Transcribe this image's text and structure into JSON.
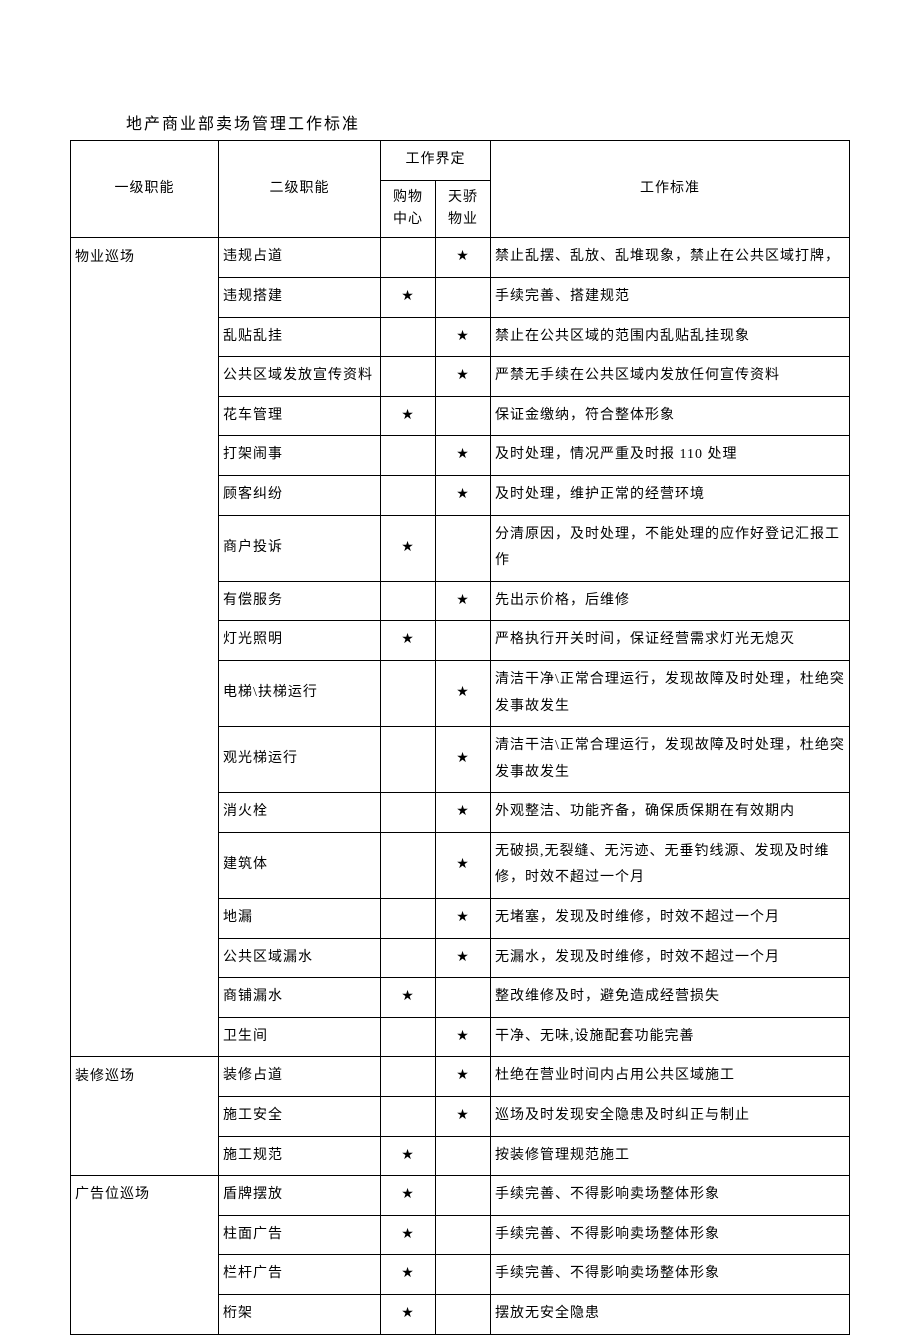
{
  "title": "地产商业部卖场管理工作标准",
  "star": "★",
  "header": {
    "col_a": "一级职能",
    "col_b": "二级职能",
    "col_cd_group": "工作界定",
    "col_c": "购物中心",
    "col_d": "天骄物业",
    "col_e": "工作标准"
  },
  "sections": [
    {
      "level1": "物业巡场",
      "rows": [
        {
          "level2": "违规占道",
          "c": "",
          "d": "star",
          "e": "禁止乱摆、乱放、乱堆现象，禁止在公共区域打牌，"
        },
        {
          "level2": "违规搭建",
          "c": "star",
          "d": "",
          "e": "手续完善、搭建规范"
        },
        {
          "level2": "乱贴乱挂",
          "c": "",
          "d": "star",
          "e": "禁止在公共区域的范围内乱贴乱挂现象"
        },
        {
          "level2": "公共区域发放宣传资料",
          "c": "",
          "d": "star",
          "e": "严禁无手续在公共区域内发放任何宣传资料"
        },
        {
          "level2": "花车管理",
          "c": "star",
          "d": "",
          "e": "保证金缴纳，符合整体形象"
        },
        {
          "level2": "打架闹事",
          "c": "",
          "d": "star",
          "e": "及时处理，情况严重及时报 110 处理"
        },
        {
          "level2": "顾客纠纷",
          "c": "",
          "d": "star",
          "e": "及时处理，维护正常的经营环境"
        },
        {
          "level2": "商户投诉",
          "c": "star",
          "d": "",
          "e": "分清原因，及时处理，不能处理的应作好登记汇报工作"
        },
        {
          "level2": "有偿服务",
          "c": "",
          "d": "star",
          "e": "先出示价格，后维修"
        },
        {
          "level2": "灯光照明",
          "c": "star",
          "d": "",
          "e": "严格执行开关时间，保证经营需求灯光无熄灭"
        },
        {
          "level2": "电梯\\扶梯运行",
          "c": "",
          "d": "star",
          "e": "清洁干净\\正常合理运行，发现故障及时处理，杜绝突发事故发生"
        },
        {
          "level2": "观光梯运行",
          "c": "",
          "d": "star",
          "e": "清洁干洁\\正常合理运行，发现故障及时处理，杜绝突发事故发生"
        },
        {
          "level2": "消火栓",
          "c": "",
          "d": "star",
          "e": "外观整洁、功能齐备，确保质保期在有效期内"
        },
        {
          "level2": "建筑体",
          "c": "",
          "d": "star",
          "e": "无破损,无裂缝、无污迹、无垂钓线源、发现及时维修，时效不超过一个月"
        },
        {
          "level2": "地漏",
          "c": "",
          "d": "star",
          "e": "无堵塞，发现及时维修，时效不超过一个月"
        },
        {
          "level2": "公共区域漏水",
          "c": "",
          "d": "star",
          "e": "无漏水，发现及时维修，时效不超过一个月"
        },
        {
          "level2": "商铺漏水",
          "c": "star",
          "d": "",
          "e": "整改维修及时，避免造成经营损失"
        },
        {
          "level2": "卫生间",
          "c": "",
          "d": "star",
          "e": "干净、无味,设施配套功能完善"
        }
      ]
    },
    {
      "level1": "装修巡场",
      "rows": [
        {
          "level2": "装修占道",
          "c": "",
          "d": "star",
          "e": "杜绝在营业时间内占用公共区域施工"
        },
        {
          "level2": "施工安全",
          "c": "",
          "d": "star",
          "e": "巡场及时发现安全隐患及时纠正与制止"
        },
        {
          "level2": "施工规范",
          "c": "star",
          "d": "",
          "e": "按装修管理规范施工"
        }
      ]
    },
    {
      "level1": "广告位巡场",
      "rows": [
        {
          "level2": "盾牌摆放",
          "c": "star",
          "d": "",
          "e": "手续完善、不得影响卖场整体形象"
        },
        {
          "level2": "柱面广告",
          "c": "star",
          "d": "",
          "e": "手续完善、不得影响卖场整体形象"
        },
        {
          "level2": "栏杆广告",
          "c": "star",
          "d": "",
          "e": "手续完善、不得影响卖场整体形象"
        },
        {
          "level2": "桁架",
          "c": "star",
          "d": "",
          "e": "摆放无安全隐患"
        }
      ]
    }
  ]
}
